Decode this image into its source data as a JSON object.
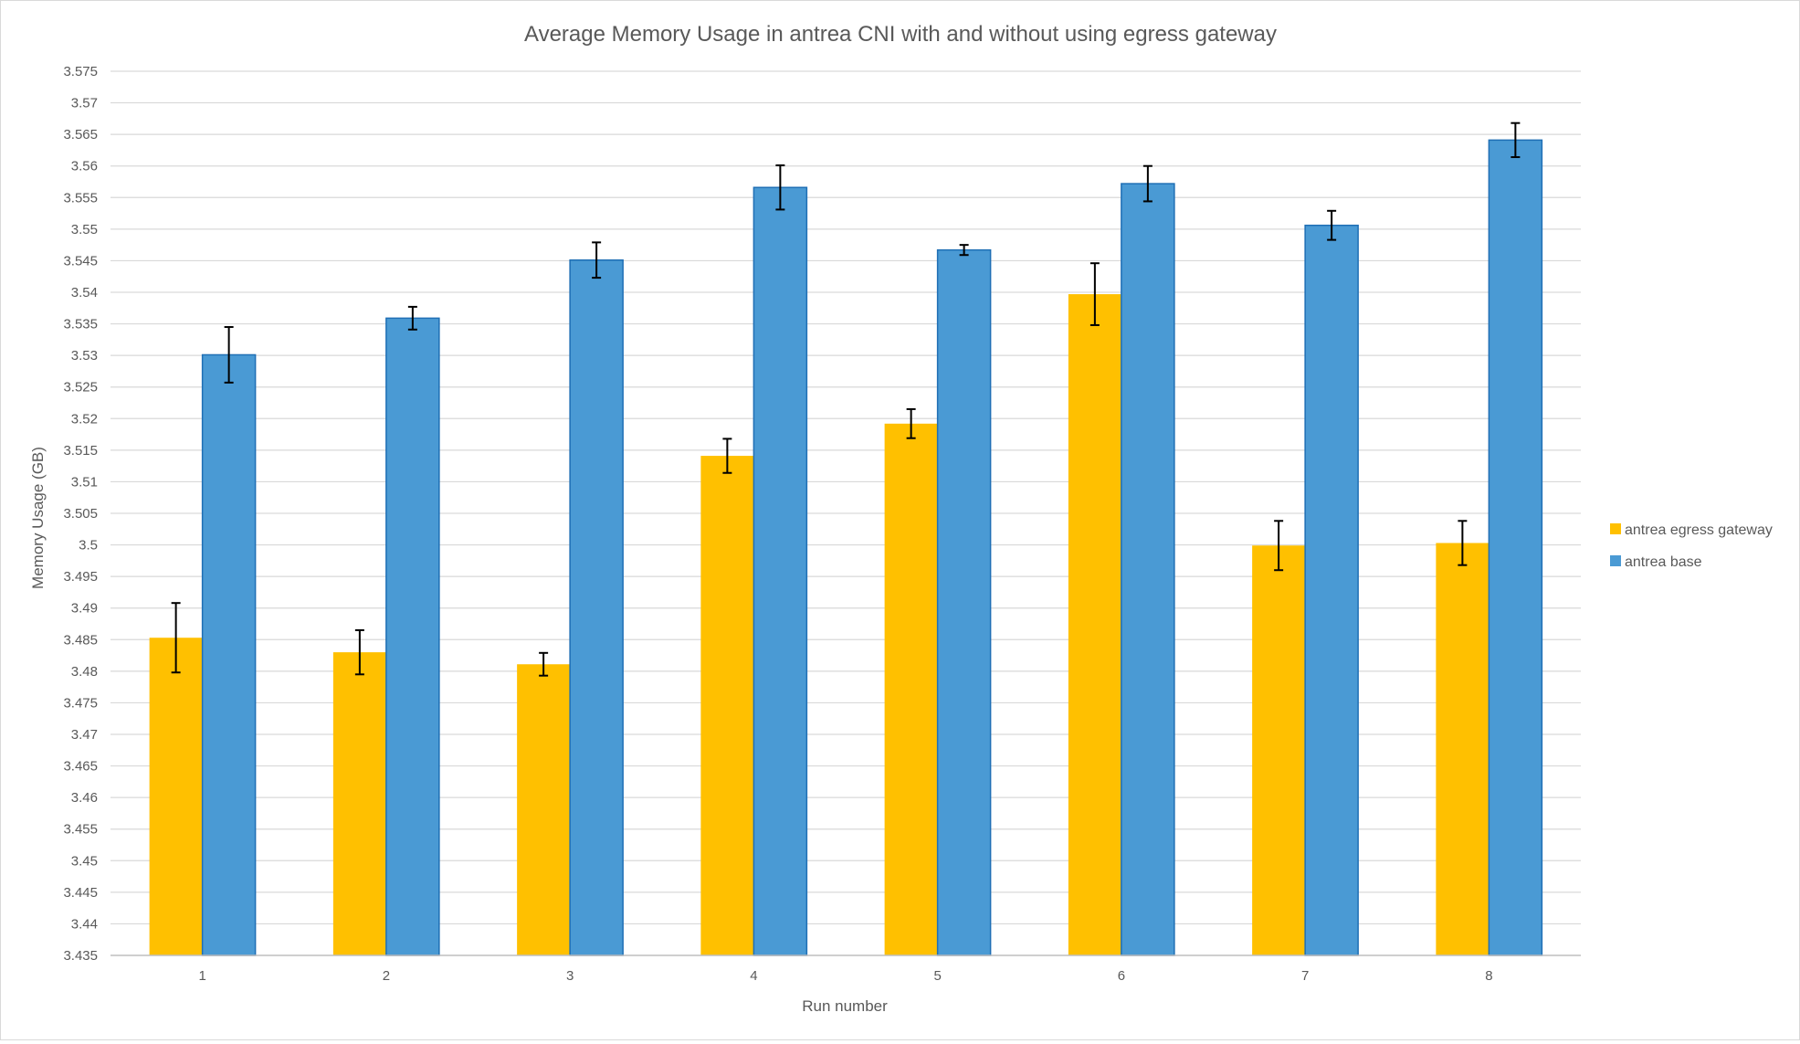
{
  "chart_data": {
    "type": "bar",
    "title": "Average Memory Usage in antrea CNI with and without using egress gateway",
    "xlabel": "Run number",
    "ylabel": "Memory Usage (GB)",
    "categories": [
      "1",
      "2",
      "3",
      "4",
      "5",
      "6",
      "7",
      "8"
    ],
    "ylim": [
      3.435,
      3.575
    ],
    "ytick_step": 0.005,
    "yticks": [
      "3.435",
      "3.44",
      "3.445",
      "3.45",
      "3.455",
      "3.46",
      "3.465",
      "3.47",
      "3.475",
      "3.48",
      "3.485",
      "3.49",
      "3.495",
      "3.5",
      "3.505",
      "3.51",
      "3.515",
      "3.52",
      "3.525",
      "3.53",
      "3.535",
      "3.54",
      "3.545",
      "3.55",
      "3.555",
      "3.56",
      "3.565",
      "3.57",
      "3.575"
    ],
    "grid": true,
    "legend_position": "right",
    "series": [
      {
        "name": "antrea egress gateway",
        "color": "#ffc000",
        "values": [
          3.4853,
          3.483,
          3.4811,
          3.5141,
          3.5192,
          3.5397,
          3.4999,
          3.5003
        ],
        "errors": [
          0.0055,
          0.0035,
          0.0018,
          0.0027,
          0.0023,
          0.0049,
          0.0039,
          0.0035
        ]
      },
      {
        "name": "antrea base",
        "color": "#4a9ad4",
        "values": [
          3.5301,
          3.5359,
          3.5451,
          3.5566,
          3.5467,
          3.5572,
          3.5506,
          3.5641
        ],
        "errors": [
          0.0044,
          0.0018,
          0.0028,
          0.0035,
          0.0008,
          0.0028,
          0.0023,
          0.0027
        ]
      }
    ]
  }
}
